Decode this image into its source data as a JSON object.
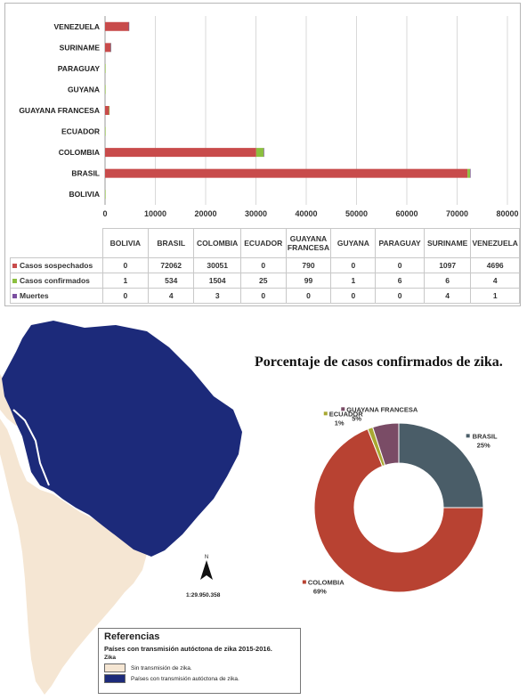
{
  "chart_data": [
    {
      "type": "bar",
      "orientation": "horizontal",
      "stacked": true,
      "categories": [
        "BOLIVIA",
        "BRASIL",
        "COLOMBIA",
        "ECUADOR",
        "GUAYANA FRANCESA",
        "GUYANA",
        "PARAGUAY",
        "SURINAME",
        "VENEZUELA"
      ],
      "series": [
        {
          "name": "Casos sospechados",
          "color": "#c84b4b",
          "values": [
            0,
            72062,
            30051,
            0,
            790,
            0,
            0,
            1097,
            4696
          ]
        },
        {
          "name": "Casos confirmados",
          "color": "#8cbf3f",
          "values": [
            1,
            534,
            1504,
            25,
            99,
            1,
            6,
            6,
            4
          ]
        },
        {
          "name": "Muertes",
          "color": "#7b4fa0",
          "values": [
            0,
            4,
            3,
            0,
            0,
            0,
            0,
            4,
            1
          ]
        }
      ],
      "xlim": [
        0,
        80000
      ],
      "xticks": [
        "0",
        "10000",
        "20000",
        "30000",
        "40000",
        "50000",
        "60000",
        "70000",
        "80000"
      ],
      "table_headers": [
        "BOLIVIA",
        "BRASIL",
        "COLOMBIA",
        "ECUADOR",
        "GUAYANA FRANCESA",
        "GUYANA",
        "PARAGUAY",
        "SURINAME",
        "VENEZUELA"
      ],
      "table_rows": [
        {
          "label": "Casos sospechados",
          "values": [
            "0",
            "72062",
            "30051",
            "0",
            "790",
            "0",
            "0",
            "1097",
            "4696"
          ]
        },
        {
          "label": "Casos confirmados",
          "values": [
            "1",
            "534",
            "1504",
            "25",
            "99",
            "1",
            "6",
            "6",
            "4"
          ]
        },
        {
          "label": "Muertes",
          "values": [
            "0",
            "4",
            "3",
            "0",
            "0",
            "0",
            "0",
            "4",
            "1"
          ]
        }
      ],
      "grid": true
    },
    {
      "type": "pie",
      "donut": true,
      "title": "Porcentaje de casos confirmados de zika.",
      "slices": [
        {
          "label": "BRASIL",
          "pct": "25%",
          "value": 25,
          "color": "#4a5d68"
        },
        {
          "label": "COLOMBIA",
          "pct": "69%",
          "value": 69,
          "color": "#b84232"
        },
        {
          "label": "ECUADOR",
          "pct": "1%",
          "value": 1,
          "color": "#a8a832"
        },
        {
          "label": "GUAYANA FRANCESA",
          "pct": "5%",
          "value": 5,
          "color": "#7a4c66"
        }
      ]
    }
  ],
  "map": {
    "scale": "1:29.950.358",
    "north": "N",
    "legend": {
      "title": "Referencias",
      "subtitle": "Países con transmisión autóctona de zika 2015-2016.",
      "layer": "Zika",
      "items": [
        {
          "label": "Sin transmisión de zika.",
          "color": "#f5e6d3"
        },
        {
          "label": "Países con transmisión autóctona de zika.",
          "color": "#1c2a7a"
        }
      ]
    }
  }
}
